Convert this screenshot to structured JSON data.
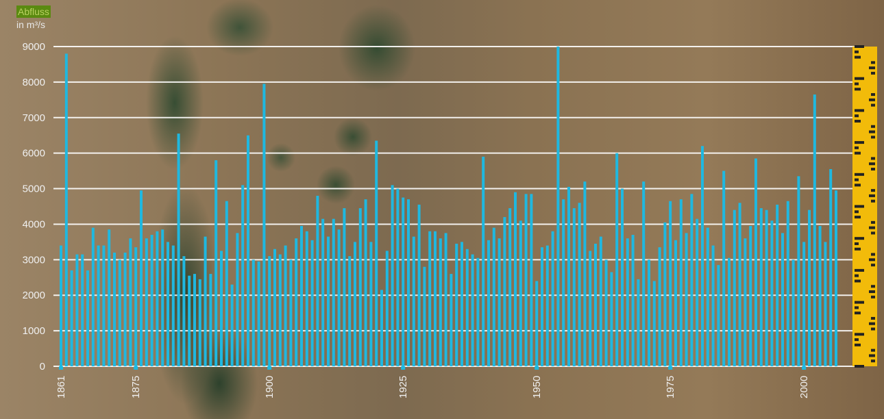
{
  "chart_data": {
    "type": "bar",
    "ylabel": "Abfluss",
    "yunit": "in m³/s",
    "ylim": [
      0,
      9000
    ],
    "yticks": [
      0,
      1000,
      2000,
      3000,
      4000,
      5000,
      6000,
      7000,
      8000,
      9000
    ],
    "xticks": [
      1861,
      1875,
      1900,
      1925,
      1950,
      1975,
      2000
    ],
    "grid": true,
    "start_year": 1861,
    "values": [
      3400,
      8800,
      2700,
      3150,
      3150,
      2700,
      3900,
      3400,
      3400,
      3850,
      3200,
      3000,
      3200,
      3600,
      3350,
      4950,
      3600,
      3700,
      3800,
      3850,
      3500,
      3400,
      6550,
      3100,
      2550,
      2600,
      2450,
      3650,
      2600,
      5800,
      3250,
      4650,
      2300,
      3750,
      5100,
      6500,
      3000,
      2950,
      7950,
      3100,
      3300,
      3150,
      3400,
      3000,
      3600,
      3950,
      3800,
      3550,
      4800,
      4150,
      3650,
      4150,
      3850,
      4450,
      3100,
      3500,
      4450,
      4700,
      3500,
      6350,
      2150,
      3250,
      5100,
      5000,
      4750,
      4700,
      3650,
      4550,
      2800,
      3800,
      3800,
      3600,
      3750,
      2600,
      3450,
      3500,
      3300,
      3150,
      3050,
      5900,
      3550,
      3900,
      3600,
      4200,
      4450,
      4900,
      4100,
      4850,
      4850,
      2400,
      3350,
      3400,
      3800,
      9000,
      4700,
      5050,
      4450,
      4600,
      5200,
      3250,
      3450,
      3650,
      3000,
      2650,
      6000,
      5000,
      3600,
      3700,
      2450,
      5200,
      3000,
      2400,
      3350,
      4050,
      4650,
      3550,
      4700,
      3750,
      4850,
      4150,
      6200,
      3900,
      3400,
      2850,
      5500,
      3050,
      4400,
      4600,
      3600,
      3950,
      5850,
      4450,
      4400,
      4100,
      4550,
      3750,
      4650,
      3000,
      5350,
      3500,
      4400,
      7650,
      3950,
      3500,
      5550,
      4950
    ]
  }
}
